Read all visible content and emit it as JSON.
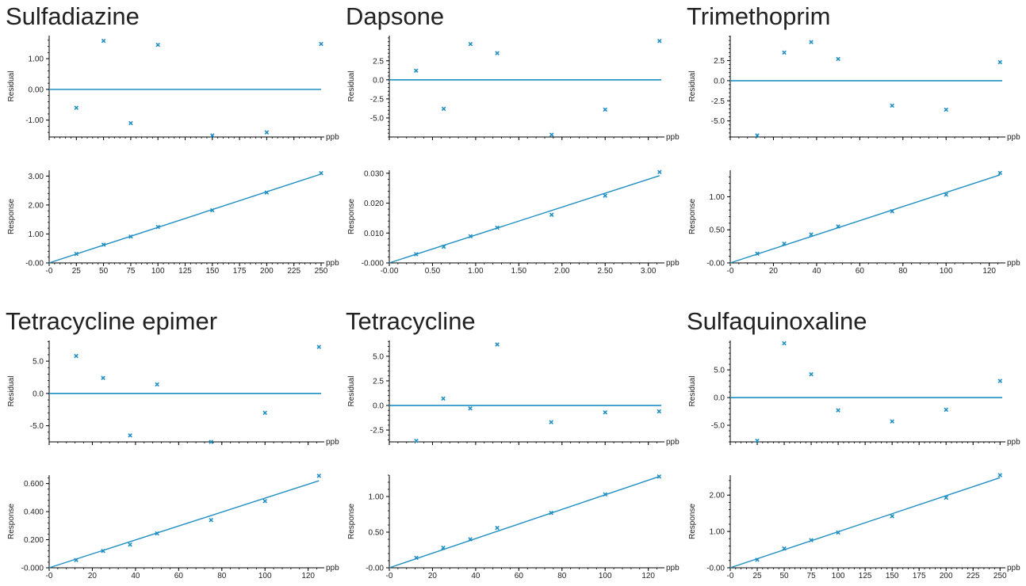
{
  "style": {
    "series_color": "#1f8fc3",
    "axis_color": "#000000",
    "text_color": "#222222"
  },
  "charts": [
    {
      "title": "Sulfadiazine",
      "x_unit": "ppb",
      "x_ticks": [
        0,
        25,
        50,
        75,
        100,
        125,
        150,
        175,
        200,
        225,
        250
      ],
      "x_tick_labels": [
        "-0",
        "25",
        "50",
        "75",
        "100",
        "125",
        "150",
        "175",
        "200",
        "225",
        "250"
      ],
      "residual": {
        "ylabel": "Residual",
        "ylim": [
          -1.55,
          1.75
        ],
        "yticks": [
          -1.0,
          0.0,
          1.0
        ],
        "ytick_labels": [
          "-1.00",
          "0.00",
          "1.00"
        ],
        "points": [
          [
            25,
            -0.6
          ],
          [
            50,
            1.58
          ],
          [
            75,
            -1.1
          ],
          [
            100,
            1.45
          ],
          [
            150,
            -1.5
          ],
          [
            200,
            -1.4
          ],
          [
            250,
            1.48
          ]
        ]
      },
      "response": {
        "ylabel": "Response",
        "ylim": [
          0,
          3.2
        ],
        "yticks": [
          0,
          1.0,
          2.0,
          3.0
        ],
        "ytick_labels": [
          "-0.00",
          "1.00",
          "2.00",
          "3.00"
        ],
        "points": [
          [
            25,
            0.31
          ],
          [
            50,
            0.63
          ],
          [
            75,
            0.91
          ],
          [
            100,
            1.24
          ],
          [
            150,
            1.82
          ],
          [
            200,
            2.43
          ],
          [
            250,
            3.1
          ]
        ],
        "fit": [
          [
            0,
            0
          ],
          [
            250,
            3.07
          ]
        ]
      }
    },
    {
      "title": "Dapsone",
      "x_unit": "ppb",
      "x_ticks": [
        0,
        0.5,
        1.0,
        1.5,
        2.0,
        2.5,
        3.0
      ],
      "x_tick_labels": [
        "-0.00",
        "0.50",
        "1.00",
        "1.50",
        "2.00",
        "2.50",
        "3.00"
      ],
      "xlim": [
        0,
        3.15
      ],
      "residual": {
        "ylabel": "Residual",
        "ylim": [
          -7.5,
          5.8
        ],
        "yticks": [
          -5.0,
          -2.5,
          0.0,
          2.5
        ],
        "ytick_labels": [
          "-5.0",
          "-2.5",
          "0.0",
          "2.5"
        ],
        "points": [
          [
            0.31,
            1.2
          ],
          [
            0.63,
            -3.8
          ],
          [
            0.94,
            4.7
          ],
          [
            1.25,
            3.5
          ],
          [
            1.88,
            -7.2
          ],
          [
            2.5,
            -3.9
          ],
          [
            3.13,
            5.1
          ]
        ]
      },
      "response": {
        "ylabel": "Response",
        "ylim": [
          0,
          0.031
        ],
        "yticks": [
          0,
          0.01,
          0.02,
          0.03
        ],
        "ytick_labels": [
          "-0.000",
          "0.010",
          "0.020",
          "0.030"
        ],
        "points": [
          [
            0.31,
            0.0029
          ],
          [
            0.63,
            0.0054
          ],
          [
            0.94,
            0.0089
          ],
          [
            1.25,
            0.0118
          ],
          [
            1.88,
            0.0161
          ],
          [
            2.5,
            0.0225
          ],
          [
            3.13,
            0.0304
          ]
        ],
        "fit": [
          [
            0,
            0
          ],
          [
            3.13,
            0.0292
          ]
        ]
      }
    },
    {
      "title": "Trimethoprim",
      "x_unit": "ppb",
      "x_ticks": [
        0,
        20,
        40,
        60,
        80,
        100,
        120
      ],
      "x_tick_labels": [
        "-0",
        "20",
        "40",
        "60",
        "80",
        "100",
        "120"
      ],
      "xlim": [
        0,
        126
      ],
      "residual": {
        "ylabel": "Residual",
        "ylim": [
          -7.0,
          5.6
        ],
        "yticks": [
          -5.0,
          -2.5,
          0.0,
          2.5
        ],
        "ytick_labels": [
          "-5.0",
          "-2.5",
          "0.0",
          "2.5"
        ],
        "points": [
          [
            12.5,
            -6.8
          ],
          [
            25,
            3.5
          ],
          [
            37.5,
            4.8
          ],
          [
            50,
            2.7
          ],
          [
            75,
            -3.1
          ],
          [
            100,
            -3.6
          ],
          [
            125,
            2.3
          ]
        ]
      },
      "response": {
        "ylabel": "Response",
        "ylim": [
          0,
          1.4
        ],
        "yticks": [
          0,
          0.5,
          1.0
        ],
        "ytick_labels": [
          "-0.00",
          "0.50",
          "1.00"
        ],
        "points": [
          [
            12.5,
            0.14
          ],
          [
            25,
            0.29
          ],
          [
            37.5,
            0.43
          ],
          [
            50,
            0.55
          ],
          [
            75,
            0.78
          ],
          [
            100,
            1.03
          ],
          [
            125,
            1.36
          ]
        ],
        "fit": [
          [
            0,
            0
          ],
          [
            125,
            1.33
          ]
        ]
      }
    },
    {
      "title": "Tetracycline epimer",
      "x_unit": "ppb",
      "x_ticks": [
        0,
        20,
        40,
        60,
        80,
        100,
        120
      ],
      "x_tick_labels": [
        "-0",
        "20",
        "40",
        "60",
        "80",
        "100",
        "120"
      ],
      "xlim": [
        0,
        126
      ],
      "residual": {
        "ylabel": "Residual",
        "ylim": [
          -7.5,
          8.2
        ],
        "yticks": [
          -5.0,
          0.0,
          5.0
        ],
        "ytick_labels": [
          "-5.0",
          "0.0",
          "5.0"
        ],
        "points": [
          [
            12.5,
            5.8
          ],
          [
            25,
            2.4
          ],
          [
            37.5,
            -6.5
          ],
          [
            50,
            1.4
          ],
          [
            75,
            -7.5
          ],
          [
            100,
            -3.0
          ],
          [
            125,
            7.2
          ]
        ]
      },
      "response": {
        "ylabel": "Response",
        "ylim": [
          0,
          0.66
        ],
        "yticks": [
          0,
          0.2,
          0.4,
          0.6
        ],
        "ytick_labels": [
          "-0.000",
          "0.200",
          "0.400",
          "0.600"
        ],
        "points": [
          [
            12.5,
            0.055
          ],
          [
            25,
            0.12
          ],
          [
            37.5,
            0.165
          ],
          [
            50,
            0.245
          ],
          [
            75,
            0.34
          ],
          [
            100,
            0.475
          ],
          [
            125,
            0.655
          ]
        ],
        "fit": [
          [
            0,
            0
          ],
          [
            125,
            0.62
          ]
        ]
      }
    },
    {
      "title": "Tetracycline",
      "x_unit": "ppb",
      "x_ticks": [
        0,
        20,
        40,
        60,
        80,
        100,
        120
      ],
      "x_tick_labels": [
        "-0",
        "20",
        "40",
        "60",
        "80",
        "100",
        "120"
      ],
      "xlim": [
        0,
        126
      ],
      "residual": {
        "ylabel": "Residual",
        "ylim": [
          -3.7,
          6.6
        ],
        "yticks": [
          -2.5,
          0.0,
          2.5,
          5.0
        ],
        "ytick_labels": [
          "-2.5",
          "0.0",
          "2.5",
          "5.0"
        ],
        "points": [
          [
            12.5,
            -3.6
          ],
          [
            25,
            0.7
          ],
          [
            37.5,
            -0.3
          ],
          [
            50,
            6.2
          ],
          [
            75,
            -1.7
          ],
          [
            100,
            -0.7
          ],
          [
            125,
            -0.6
          ]
        ]
      },
      "response": {
        "ylabel": "Response",
        "ylim": [
          0,
          1.3
        ],
        "yticks": [
          0,
          0.5,
          1.0
        ],
        "ytick_labels": [
          "-0.00",
          "0.50",
          "1.00"
        ],
        "points": [
          [
            12.5,
            0.14
          ],
          [
            25,
            0.28
          ],
          [
            37.5,
            0.4
          ],
          [
            50,
            0.56
          ],
          [
            75,
            0.77
          ],
          [
            100,
            1.03
          ],
          [
            125,
            1.28
          ]
        ],
        "fit": [
          [
            0,
            0
          ],
          [
            125,
            1.28
          ]
        ]
      }
    },
    {
      "title": "Sulfaquinoxaline",
      "x_unit": "ppb",
      "x_ticks": [
        0,
        25,
        50,
        75,
        100,
        125,
        150,
        175,
        200,
        225,
        250
      ],
      "x_tick_labels": [
        "-0",
        "25",
        "50",
        "75",
        "100",
        "125",
        "150",
        "175",
        "200",
        "225",
        "250"
      ],
      "xlim": [
        0,
        252
      ],
      "residual": {
        "ylabel": "Residual",
        "ylim": [
          -8.0,
          10.3
        ],
        "yticks": [
          -5.0,
          0.0,
          5.0
        ],
        "ytick_labels": [
          "-5.0",
          "0.0",
          "5.0"
        ],
        "points": [
          [
            25,
            -7.8
          ],
          [
            50,
            9.8
          ],
          [
            75,
            4.2
          ],
          [
            100,
            -2.3
          ],
          [
            150,
            -4.3
          ],
          [
            200,
            -2.2
          ],
          [
            250,
            3.0
          ]
        ]
      },
      "response": {
        "ylabel": "Response",
        "ylim": [
          0,
          2.55
        ],
        "yticks": [
          0,
          1.0,
          2.0
        ],
        "ytick_labels": [
          "-0.00",
          "1.00",
          "2.00"
        ],
        "points": [
          [
            25,
            0.22
          ],
          [
            50,
            0.53
          ],
          [
            75,
            0.76
          ],
          [
            100,
            0.97
          ],
          [
            150,
            1.42
          ],
          [
            200,
            1.93
          ],
          [
            250,
            2.55
          ]
        ],
        "fit": [
          [
            0,
            0
          ],
          [
            250,
            2.48
          ]
        ]
      }
    }
  ]
}
